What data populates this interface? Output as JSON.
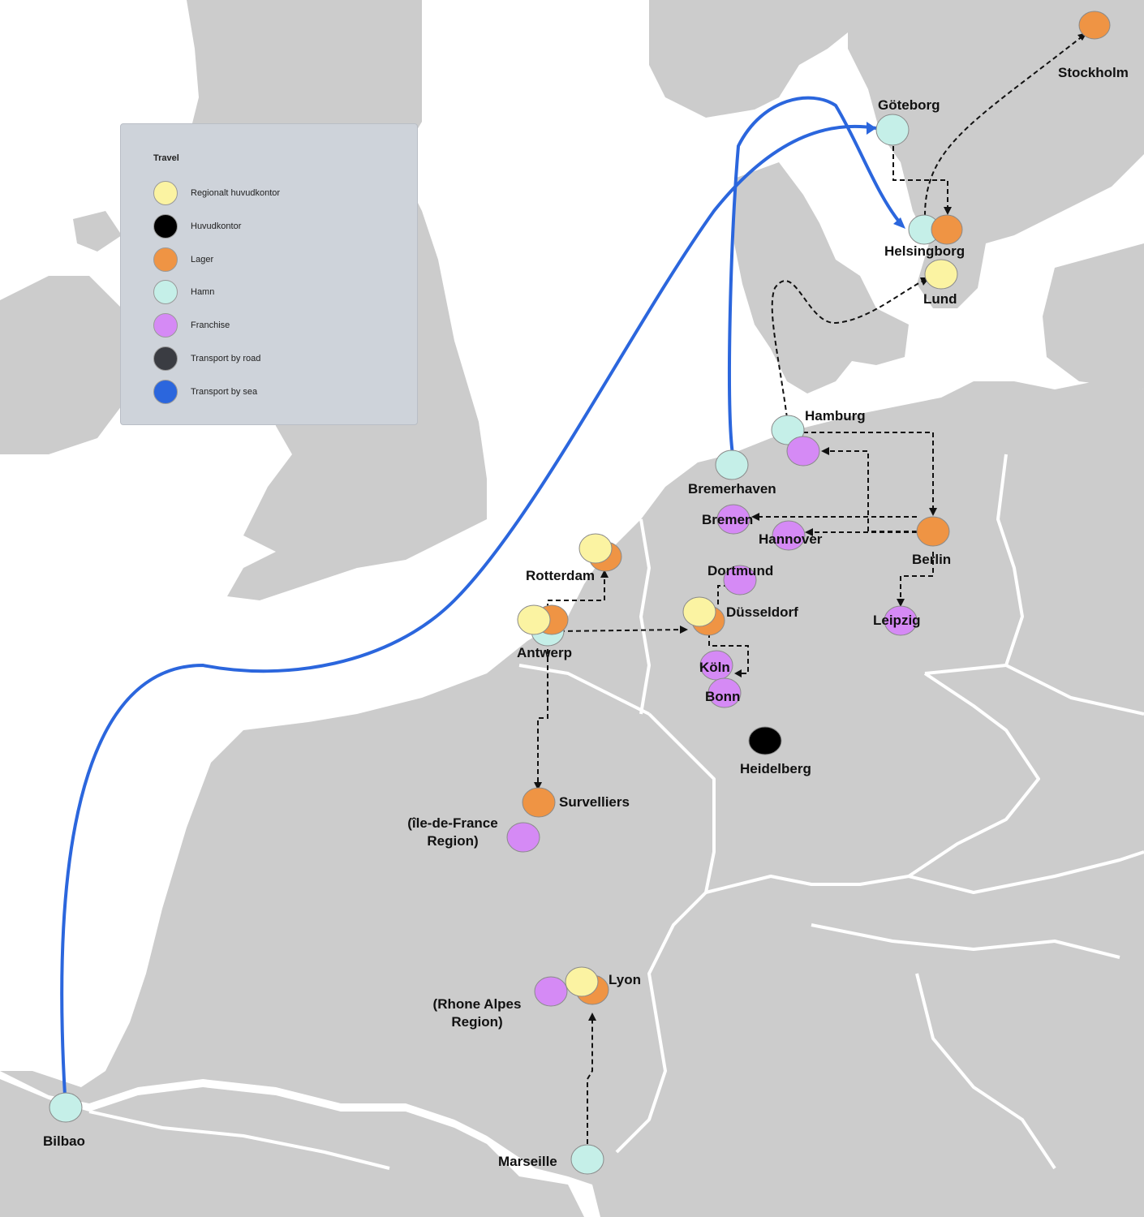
{
  "colors": {
    "land": "#cccccc",
    "sea": "#ffffff",
    "regional_office": "#fbf3a2",
    "head_office": "#000000",
    "warehouse": "#ef9444",
    "port": "#c5efe8",
    "franchise": "#d58af5",
    "road": "#3a3c42",
    "sea_route": "#2b66dd"
  },
  "legend": {
    "title": "Travel",
    "items": [
      {
        "label": "Regionalt huvudkontor",
        "color": "#fbf3a2",
        "icon": "regional-office-marker"
      },
      {
        "label": "Huvudkontor",
        "color": "#000000",
        "icon": "head-office-marker"
      },
      {
        "label": "Lager",
        "color": "#ef9444",
        "icon": "warehouse-marker"
      },
      {
        "label": "Hamn",
        "color": "#c5efe8",
        "icon": "port-marker"
      },
      {
        "label": "Franchise",
        "color": "#d58af5",
        "icon": "franchise-marker"
      },
      {
        "label": "Transport by road",
        "color": "#3a3c42",
        "icon": "road-marker"
      },
      {
        "label": "Transport by sea",
        "color": "#2b66dd",
        "icon": "sea-marker"
      }
    ]
  },
  "places": {
    "stockholm": "Stockholm",
    "goteborg": "Göteborg",
    "helsingborg": "Helsingborg",
    "lund": "Lund",
    "hamburg": "Hamburg",
    "bremerhaven": "Bremerhaven",
    "bremen": "Bremen",
    "hannover": "Hannover",
    "berlin": "Berlin",
    "leipzig": "Leipzig",
    "dortmund": "Dortmund",
    "dusseldorf": "Düsseldorf",
    "koln": "Köln",
    "bonn": "Bonn",
    "heidelberg": "Heidelberg",
    "rotterdam": "Rotterdam",
    "antwerp": "Antwerp",
    "survelliers": "Survelliers",
    "idf_line1": "(île-de-France",
    "idf_line2": "Region)",
    "lyon": "Lyon",
    "ra_line1": "(Rhone Alpes",
    "ra_line2": "Region)",
    "marseille": "Marseille",
    "bilbao": "Bilbao"
  }
}
